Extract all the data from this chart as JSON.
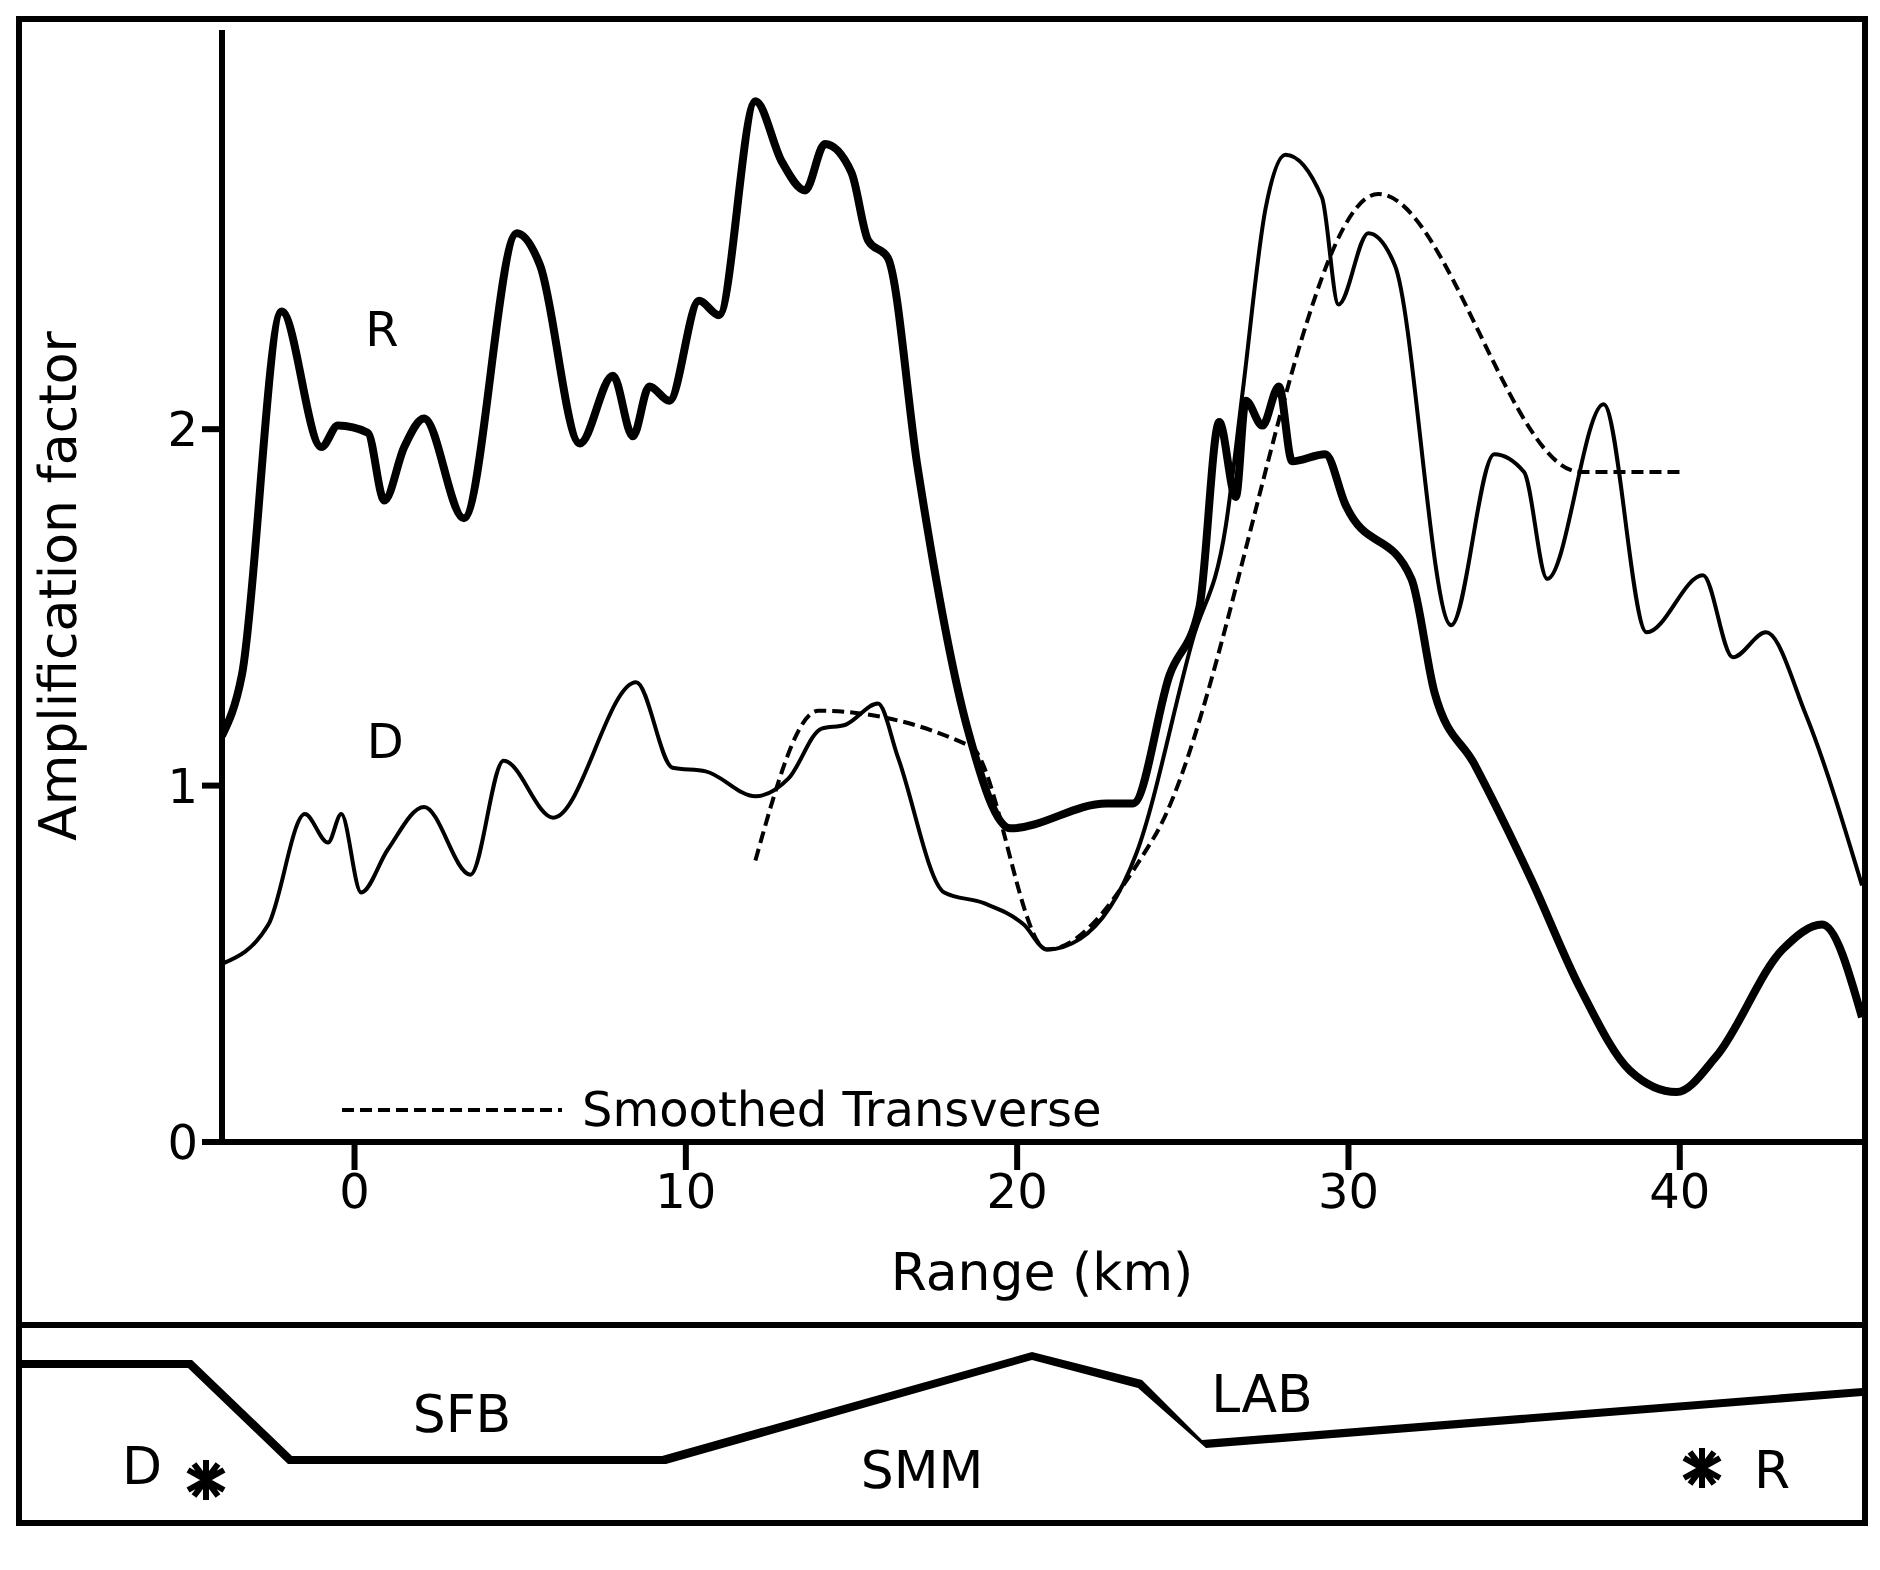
{
  "chart_data": {
    "type": "line",
    "xlabel": "Range (km)",
    "ylabel": "Amplification factor",
    "xlim": [
      -4,
      45.5
    ],
    "ylim": [
      0,
      3.12
    ],
    "xticks": [
      0,
      10,
      20,
      30,
      40
    ],
    "yticks": [
      0,
      1,
      2
    ],
    "legend": "bottom left",
    "line_style": "solid",
    "annotations": [
      "D",
      "SFB",
      "SMM",
      "LAB",
      "R"
    ],
    "series": [
      {
        "name": "R",
        "color": "#000000",
        "x": [
          -4.0,
          -3.4,
          -2.2,
          -1.0,
          -0.5,
          0.4,
          0.9,
          1.5,
          2.1,
          3.3,
          4.9,
          5.6,
          6.8,
          7.8,
          8.4,
          8.9,
          9.5,
          10.4,
          11.0,
          12.1,
          12.9,
          13.6,
          14.2,
          15.0,
          15.5,
          16.1,
          17.0,
          18.5,
          19.8,
          22.7,
          23.5,
          24.6,
          25.5,
          26.1,
          26.6,
          26.9,
          27.4,
          27.9,
          28.3,
          29.3,
          29.9,
          31.9,
          32.6,
          33.8,
          35.5,
          37.0,
          38.5,
          39.9,
          41.1,
          43.1,
          44.3,
          45.5
        ],
        "values": [
          1.14,
          1.31,
          2.33,
          1.95,
          2.01,
          1.99,
          1.8,
          1.95,
          2.03,
          1.75,
          2.55,
          2.46,
          1.96,
          2.15,
          1.98,
          2.12,
          2.08,
          2.36,
          2.32,
          2.92,
          2.75,
          2.67,
          2.8,
          2.72,
          2.53,
          2.48,
          1.89,
          1.16,
          0.88,
          0.95,
          0.95,
          1.31,
          1.5,
          2.02,
          1.81,
          2.08,
          2.01,
          2.12,
          1.91,
          1.93,
          1.79,
          1.58,
          1.26,
          1.06,
          0.74,
          0.43,
          0.2,
          0.14,
          0.24,
          0.54,
          0.61,
          0.35
        ]
      },
      {
        "name": "D",
        "color": "#000000",
        "x": [
          -4.0,
          -2.6,
          -1.5,
          -0.8,
          -0.4,
          0.2,
          1.0,
          2.1,
          3.5,
          4.5,
          6.0,
          8.5,
          9.6,
          10.6,
          12.1,
          13.1,
          14.1,
          14.8,
          15.8,
          16.4,
          17.8,
          19.0,
          20.2,
          20.9,
          21.9,
          23.6,
          25.3,
          26.3,
          26.8,
          27.5,
          28.1,
          29.2,
          29.7,
          30.6,
          31.4,
          33.1,
          34.4,
          35.3,
          36.0,
          37.7,
          39.0,
          40.7,
          41.6,
          42.6,
          43.8,
          45.5
        ],
        "values": [
          0.5,
          0.61,
          0.92,
          0.84,
          0.92,
          0.7,
          0.82,
          0.94,
          0.75,
          1.07,
          0.91,
          1.29,
          1.05,
          1.04,
          0.97,
          1.02,
          1.16,
          1.17,
          1.23,
          1.08,
          0.7,
          0.67,
          0.61,
          0.54,
          0.57,
          0.81,
          1.41,
          1.73,
          2.1,
          2.62,
          2.77,
          2.65,
          2.35,
          2.55,
          2.46,
          1.45,
          1.93,
          1.88,
          1.58,
          2.07,
          1.43,
          1.59,
          1.36,
          1.43,
          1.2,
          0.72
        ]
      },
      {
        "name": "Smoothed Transverse",
        "color": "#000000",
        "line_style": "dashed",
        "x": [
          12.1,
          14.0,
          18.6,
          20.9,
          24.1,
          30.9,
          37.0,
          40.0
        ],
        "values": [
          0.79,
          1.21,
          1.11,
          0.54,
          0.85,
          2.66,
          1.88,
          1.88
        ]
      }
    ]
  }
}
